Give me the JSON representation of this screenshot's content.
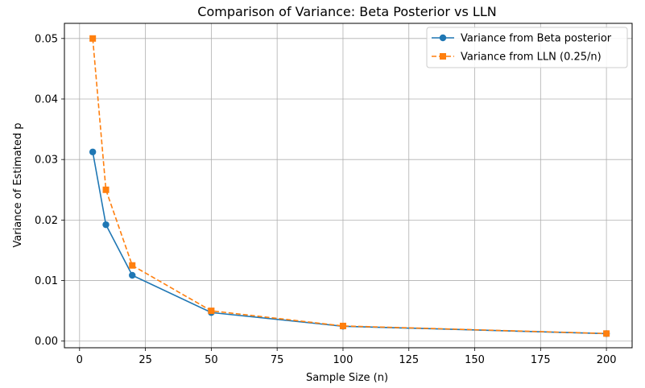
{
  "chart_data": {
    "type": "line",
    "title": "Comparison of Variance: Beta Posterior vs LLN",
    "xlabel": "Sample Size (n)",
    "ylabel": "Variance of Estimated p",
    "xlim": [
      -5.75,
      209.75
    ],
    "ylim": [
      -0.0011,
      0.0525
    ],
    "xticks": [
      0,
      25,
      50,
      75,
      100,
      125,
      150,
      175,
      200
    ],
    "yticks": [
      0.0,
      0.01,
      0.02,
      0.03,
      0.04,
      0.05
    ],
    "xtick_labels": [
      "0",
      "25",
      "50",
      "75",
      "100",
      "125",
      "150",
      "175",
      "200"
    ],
    "ytick_labels": [
      "0.00",
      "0.01",
      "0.02",
      "0.03",
      "0.04",
      "0.05"
    ],
    "grid": true,
    "legend_position": "top-right",
    "x": [
      5,
      10,
      20,
      50,
      100,
      200
    ],
    "series": [
      {
        "name": "Variance from Beta posterior",
        "values": [
          0.03125,
          0.01923,
          0.01087,
          0.00472,
          0.00245,
          0.00123
        ],
        "color": "#1f77b4",
        "line_style": "solid",
        "marker": "circle"
      },
      {
        "name": "Variance from LLN (0.25/n)",
        "values": [
          0.05,
          0.025,
          0.0125,
          0.005,
          0.0025,
          0.00125
        ],
        "color": "#ff7f0e",
        "line_style": "dashed",
        "marker": "square"
      }
    ]
  }
}
